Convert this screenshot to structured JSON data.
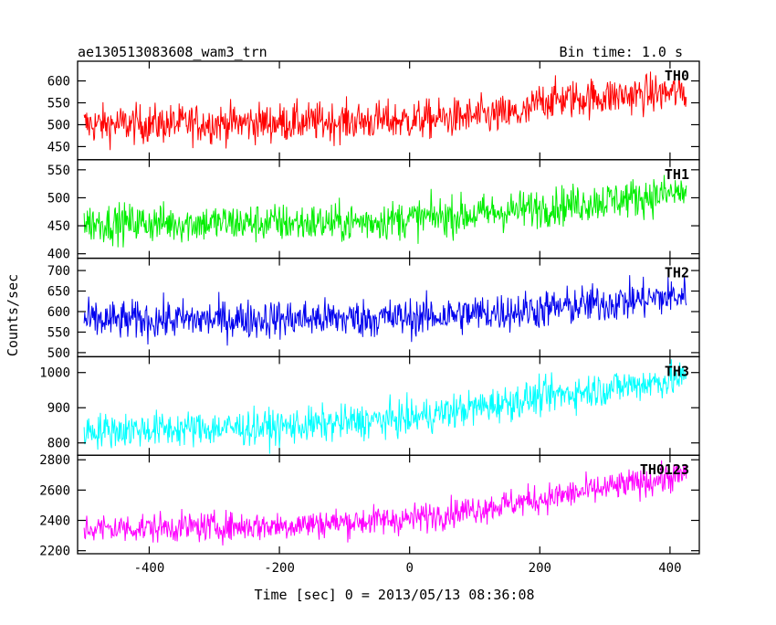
{
  "chart_data": {
    "type": "line",
    "title": "ae130513083608_wam3_trn",
    "subtitle": "Bin time: 1.0 s",
    "xlabel": "Time [sec] 0 = 2013/05/13 08:36:08",
    "ylabel": "Counts/sec",
    "xlim": [
      -510,
      445
    ],
    "xticks": [
      -400,
      -200,
      0,
      200,
      400
    ],
    "x_range": [
      -500,
      425
    ],
    "panels": [
      {
        "name": "TH0",
        "color": "#ff0000",
        "ylim": [
          420,
          645
        ],
        "yticks": [
          450,
          500,
          550,
          600
        ],
        "trend": [
          [
            -500,
            500
          ],
          [
            -200,
            505
          ],
          [
            0,
            510
          ],
          [
            180,
            525
          ],
          [
            200,
            555
          ],
          [
            425,
            575
          ]
        ],
        "noise": 32
      },
      {
        "name": "TH1",
        "color": "#00ee00",
        "ylim": [
          392,
          568
        ],
        "yticks": [
          400,
          450,
          500,
          550
        ],
        "trend": [
          [
            -500,
            455
          ],
          [
            -100,
            455
          ],
          [
            100,
            470
          ],
          [
            425,
            510
          ]
        ],
        "noise": 25
      },
      {
        "name": "TH2",
        "color": "#0000ee",
        "ylim": [
          490,
          730
        ],
        "yticks": [
          500,
          550,
          600,
          650,
          700
        ],
        "trend": [
          [
            -500,
            578
          ],
          [
            0,
            585
          ],
          [
            200,
            605
          ],
          [
            425,
            640
          ]
        ],
        "noise": 34
      },
      {
        "name": "TH3",
        "color": "#00ffff",
        "ylim": [
          765,
          1045
        ],
        "yticks": [
          800,
          900,
          1000
        ],
        "trend": [
          [
            -500,
            835
          ],
          [
            -200,
            845
          ],
          [
            0,
            870
          ],
          [
            200,
            930
          ],
          [
            425,
            985
          ]
        ],
        "noise": 36
      },
      {
        "name": "TH0123",
        "color": "#ff00ff",
        "ylim": [
          2180,
          2830
        ],
        "yticks": [
          2200,
          2400,
          2600,
          2800
        ],
        "trend": [
          [
            -500,
            2345
          ],
          [
            -200,
            2365
          ],
          [
            0,
            2410
          ],
          [
            200,
            2540
          ],
          [
            425,
            2700
          ]
        ],
        "noise": 70
      }
    ]
  }
}
